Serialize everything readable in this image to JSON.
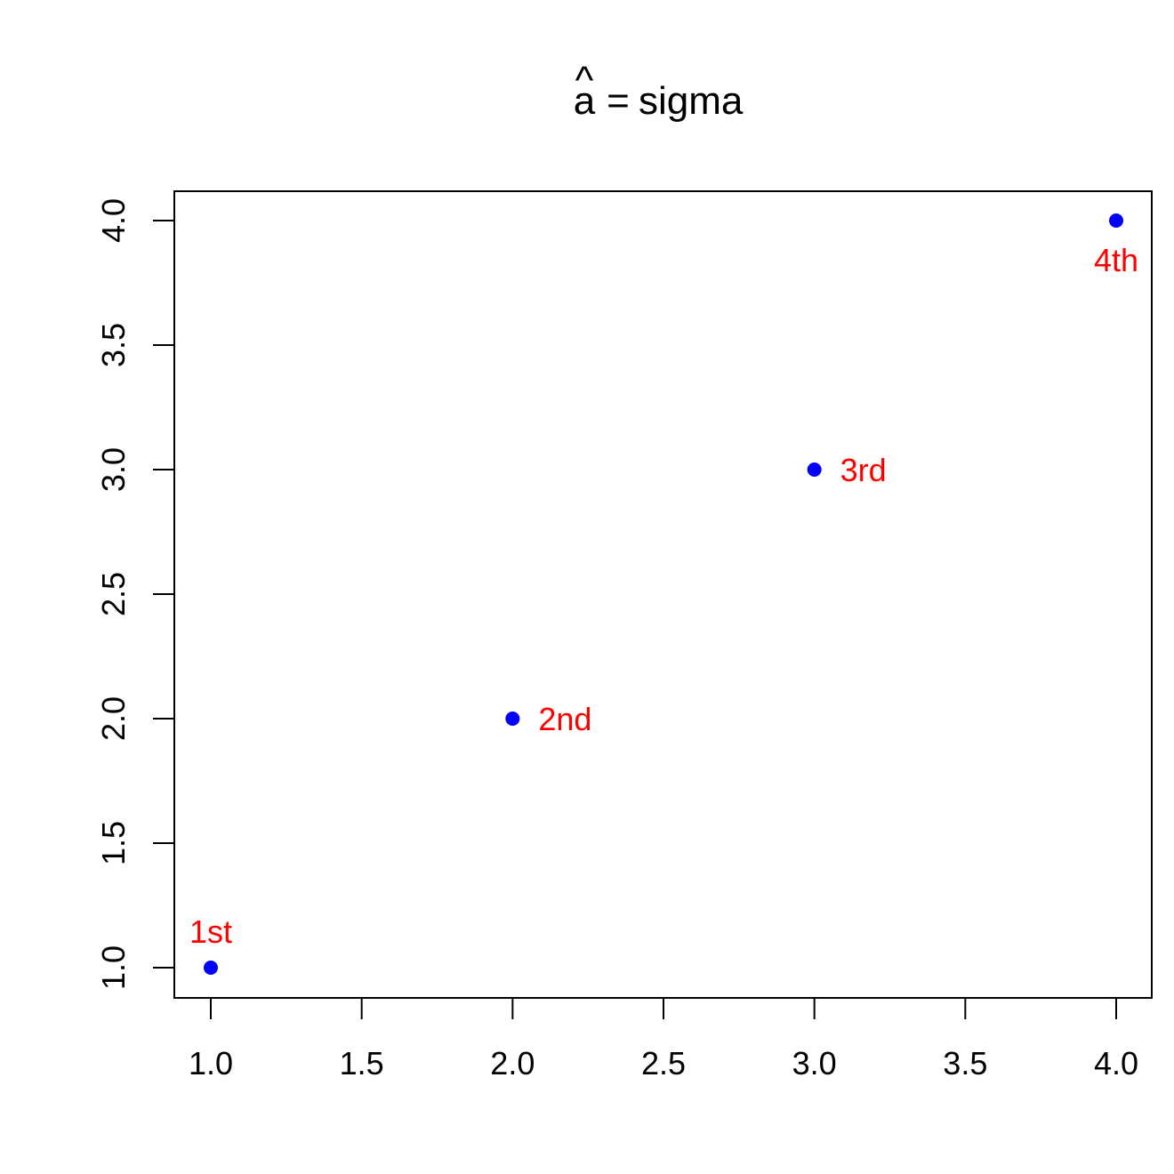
{
  "chart_data": {
    "type": "scatter",
    "title": {
      "hat_letter": "a",
      "hat_symbol": "^",
      "equals": "=",
      "rhs": "sigma"
    },
    "xlabel": "",
    "ylabel": "",
    "xlim": [
      1.0,
      4.0
    ],
    "ylim": [
      1.0,
      4.0
    ],
    "x_ticks": [
      "1.0",
      "1.5",
      "2.0",
      "2.5",
      "3.0",
      "3.5",
      "4.0"
    ],
    "y_ticks": [
      "1.0",
      "1.5",
      "2.0",
      "2.5",
      "3.0",
      "3.5",
      "4.0"
    ],
    "grid": false,
    "points": [
      {
        "x": 1,
        "y": 1,
        "label": "1st",
        "label_position": "above"
      },
      {
        "x": 2,
        "y": 2,
        "label": "2nd",
        "label_position": "right"
      },
      {
        "x": 3,
        "y": 3,
        "label": "3rd",
        "label_position": "right"
      },
      {
        "x": 4,
        "y": 4,
        "label": "4th",
        "label_position": "below"
      }
    ],
    "colors": {
      "points": "#0000ff",
      "labels": "#ff0000"
    }
  }
}
